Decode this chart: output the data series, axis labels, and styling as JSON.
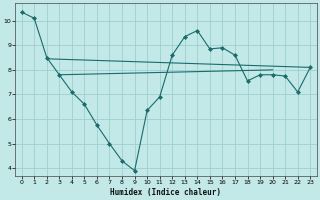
{
  "xlabel": "Humidex (Indice chaleur)",
  "bg_color": "#c2e8e8",
  "grid_color": "#9ecece",
  "line_color": "#1a6b6b",
  "xlim": [
    -0.5,
    23.5
  ],
  "ylim": [
    3.7,
    10.7
  ],
  "yticks": [
    4,
    5,
    6,
    7,
    8,
    9,
    10
  ],
  "xticks": [
    0,
    1,
    2,
    3,
    4,
    5,
    6,
    7,
    8,
    9,
    10,
    11,
    12,
    13,
    14,
    15,
    16,
    17,
    18,
    19,
    20,
    21,
    22,
    23
  ],
  "main_x": [
    0,
    1,
    2,
    3,
    4,
    5,
    6,
    7,
    8,
    9,
    10,
    11,
    12,
    13,
    14,
    15,
    16,
    17,
    18,
    19,
    20,
    21,
    22,
    23
  ],
  "main_y": [
    10.35,
    10.1,
    8.5,
    7.8,
    7.1,
    6.6,
    5.75,
    5.0,
    4.3,
    3.9,
    6.35,
    6.9,
    8.6,
    9.35,
    9.6,
    8.85,
    8.9,
    8.6,
    7.55,
    7.8,
    7.8,
    7.75,
    7.1,
    8.1
  ],
  "trend1_x": [
    2,
    23
  ],
  "trend1_y": [
    8.45,
    8.1
  ],
  "trend2_x": [
    3,
    20
  ],
  "trend2_y": [
    7.8,
    8.0
  ]
}
